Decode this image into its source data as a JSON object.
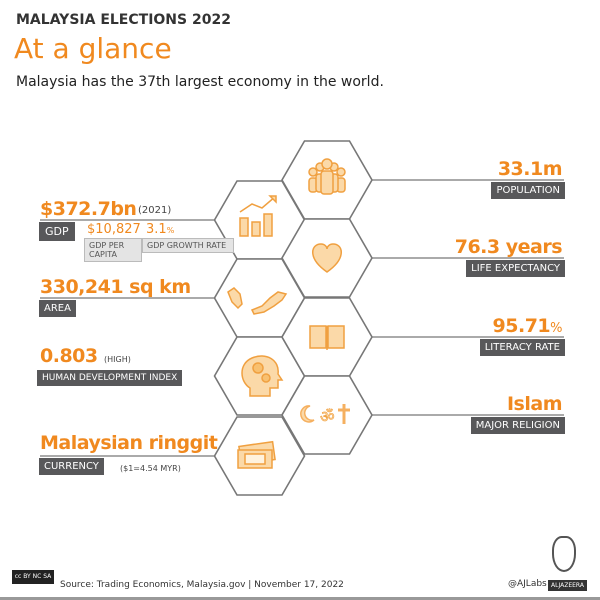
{
  "header": {
    "kicker": "MALAYSIA ELECTIONS 2022",
    "title": "At a glance",
    "subtitle": "Malaysia has the 37th largest economy in the world."
  },
  "colors": {
    "accent": "#f0891f",
    "tag": "#58585a",
    "hex_stroke": "#777777"
  },
  "left": {
    "gdp": {
      "value": "$372.7bn",
      "year": "(2021)",
      "label": "GDP",
      "per_capita": "$10,827",
      "per_capita_label": "GDP PER CAPITA",
      "growth": "3.1",
      "growth_unit": "%",
      "growth_label": "GDP GROWTH RATE",
      "icon": "bar-chart-growth-icon"
    },
    "area": {
      "value": "330,241 sq km",
      "label": "AREA",
      "icon": "malaysia-map-icon"
    },
    "hdi": {
      "value": "0.803",
      "note": "(HIGH)",
      "label": "HUMAN DEVELOPMENT INDEX",
      "icon": "head-gears-icon"
    },
    "currency": {
      "value": "Malaysian ringgit",
      "label": "CURRENCY",
      "note": "($1=4.54 MYR)",
      "icon": "banknotes-icon"
    }
  },
  "right": {
    "population": {
      "value": "33.1m",
      "label": "POPULATION",
      "icon": "people-group-icon"
    },
    "life": {
      "value": "76.3 years",
      "label": "LIFE EXPECTANCY",
      "icon": "heart-icon"
    },
    "literacy": {
      "value": "95.71",
      "unit": "%",
      "label": "LITERACY RATE",
      "icon": "book-icon"
    },
    "religion": {
      "value": "Islam",
      "label": "MAJOR RELIGION",
      "icon": "religion-symbols-icon"
    }
  },
  "footer": {
    "source": "Source: Trading Economics, Malaysia.gov  |  November 17, 2022",
    "handle": "@AJLabs",
    "brand": "ALJAZEERA",
    "license": "cc BY NC SA"
  }
}
